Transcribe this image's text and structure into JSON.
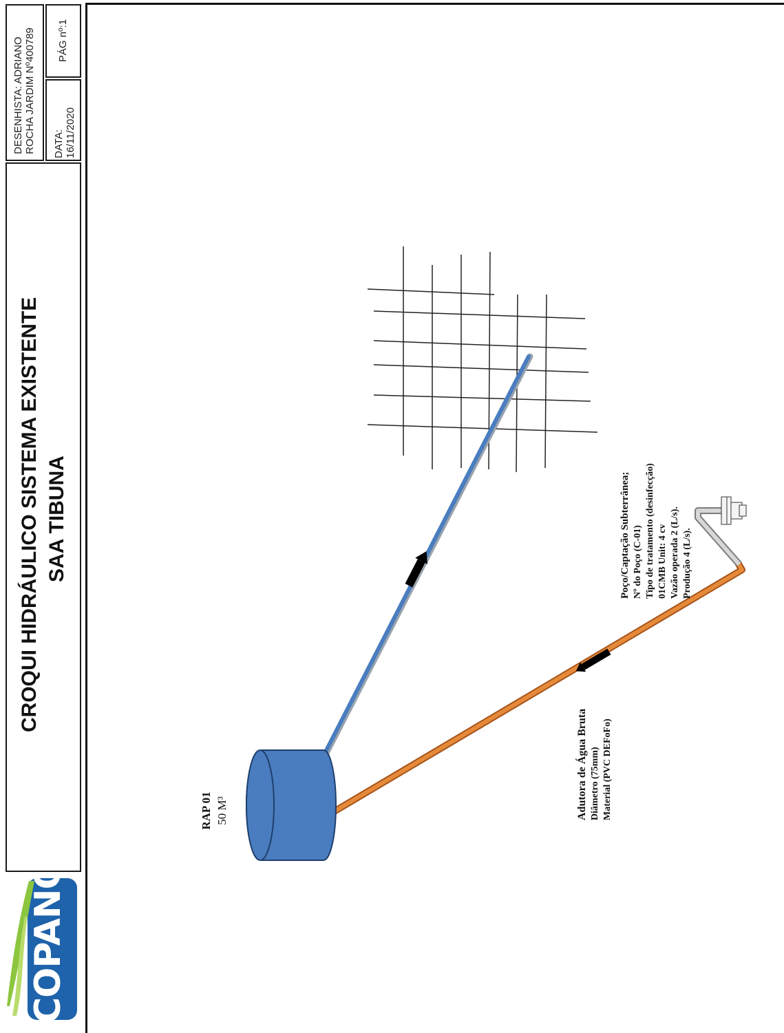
{
  "header": {
    "title_line1": "CROQUI HIDRÁULICO SISTEMA EXISTENTE",
    "title_line2": "SAA TIBUNA",
    "designer_line1": "DESENHISTA: ADRIANO",
    "designer_line2": "ROCHA JARDIM Nº400789",
    "date_label": "DATA:",
    "date_value": "16/11/2020",
    "page_label": "PÁG nº:1"
  },
  "logo": {
    "text": "COPANOR",
    "colors": {
      "blue": "#1e63ab",
      "green": "#8cc63f"
    }
  },
  "reservoir": {
    "name": "RAP 01",
    "capacity": "50 M³",
    "color": "#4a7dbf"
  },
  "adutora": {
    "line1": "Adutora de Água Bruta",
    "line2": "Diâmetro (75mm)",
    "line3": "Material (PVC DEFoFo)",
    "color": "#d9782c"
  },
  "well": {
    "line1": "Poço/Captação Subterrânea;",
    "line2": "Nº do Poço (C-01)",
    "line3": "Tipo de tratamento (desinfecção)",
    "line4": "01CMB Unit: 4 cv",
    "line5": "Vazão operada 2 (L/s).",
    "line6": "Produção   4 (L/s)."
  },
  "distribution": {
    "color": "#4a7dbf",
    "icon": "street-grid-icon"
  }
}
